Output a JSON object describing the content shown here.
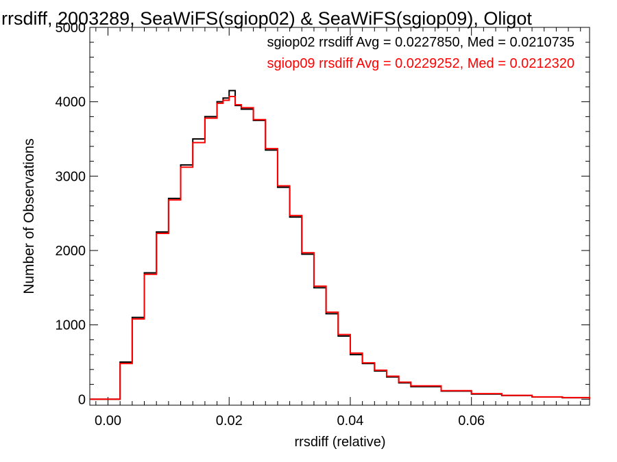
{
  "chart_data": {
    "type": "line",
    "title": "rrsdiff, 2003289, SeaWiFS(sgiop02) & SeaWiFS(sgiop09), Oligot",
    "xlabel": "rrsdiff (relative)",
    "ylabel": "Number of Observations",
    "xlim": [
      -0.003,
      0.0795
    ],
    "ylim": [
      -80,
      5000
    ],
    "xticks": [
      {
        "value": 0.0,
        "label": "0.00"
      },
      {
        "value": 0.02,
        "label": "0.02"
      },
      {
        "value": 0.04,
        "label": "0.04"
      },
      {
        "value": 0.06,
        "label": "0.06"
      }
    ],
    "yticks": [
      {
        "value": 0,
        "label": "0"
      },
      {
        "value": 1000,
        "label": "1000"
      },
      {
        "value": 2000,
        "label": "2000"
      },
      {
        "value": 3000,
        "label": "3000"
      },
      {
        "value": 4000,
        "label": "4000"
      },
      {
        "value": 5000,
        "label": "5000"
      }
    ],
    "grid": false,
    "legend": "top-right",
    "annotations": [
      {
        "text": "sgiop02 rrsdiff Avg = 0.0227850, Med = 0.0210735",
        "color": "#000000"
      },
      {
        "text": "sgiop09 rrsdiff Avg = 0.0229252, Med = 0.0212320",
        "color": "#ff0000"
      }
    ],
    "series": [
      {
        "color": "#000000",
        "step": true,
        "x": [
          -0.003,
          0.0,
          0.002,
          0.004,
          0.006,
          0.008,
          0.01,
          0.012,
          0.014,
          0.016,
          0.018,
          0.019,
          0.02,
          0.021,
          0.022,
          0.024,
          0.026,
          0.028,
          0.03,
          0.032,
          0.034,
          0.036,
          0.038,
          0.04,
          0.042,
          0.044,
          0.046,
          0.048,
          0.05,
          0.055,
          0.06,
          0.065,
          0.07,
          0.075,
          0.0795
        ],
        "y": [
          0,
          0,
          500,
          1100,
          1700,
          2250,
          2700,
          3150,
          3500,
          3800,
          4000,
          4050,
          4150,
          3950,
          3900,
          3750,
          3350,
          2850,
          2450,
          1950,
          1500,
          1150,
          850,
          600,
          480,
          380,
          300,
          220,
          170,
          110,
          70,
          50,
          30,
          20,
          0
        ]
      },
      {
        "color": "#ff0000",
        "step": true,
        "x": [
          -0.003,
          0.0,
          0.002,
          0.004,
          0.006,
          0.008,
          0.01,
          0.012,
          0.014,
          0.016,
          0.018,
          0.019,
          0.02,
          0.021,
          0.022,
          0.024,
          0.026,
          0.028,
          0.03,
          0.032,
          0.034,
          0.036,
          0.038,
          0.04,
          0.042,
          0.044,
          0.046,
          0.048,
          0.05,
          0.055,
          0.06,
          0.065,
          0.07,
          0.075,
          0.0795
        ],
        "y": [
          0,
          0,
          480,
          1080,
          1680,
          2230,
          2680,
          3120,
          3450,
          3780,
          3980,
          4020,
          4070,
          3960,
          3920,
          3760,
          3370,
          2870,
          2470,
          1970,
          1520,
          1170,
          870,
          620,
          490,
          390,
          310,
          230,
          180,
          115,
          75,
          52,
          32,
          22,
          0
        ]
      }
    ]
  }
}
